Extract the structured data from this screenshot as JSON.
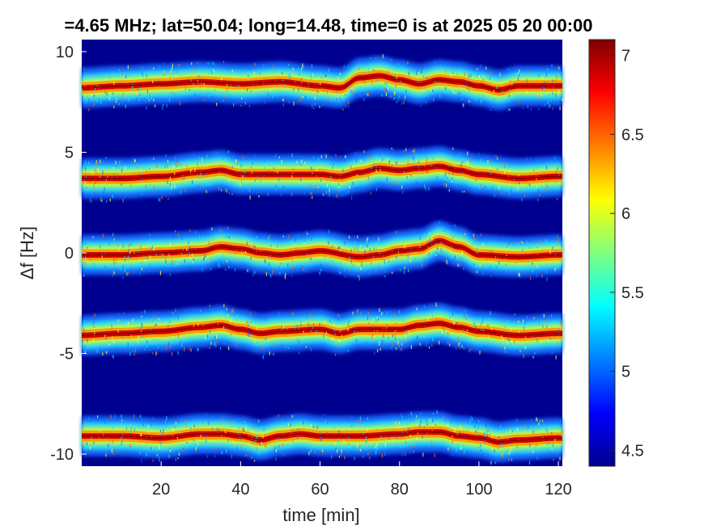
{
  "chart_data": {
    "type": "heatmap",
    "title": "=4.65 MHz;  lat=50.04; long=14.48, time=0 is at 2025 05 20 00:00",
    "xlabel": "time [min]",
    "ylabel": "Δf [Hz]",
    "xlim": [
      0,
      121
    ],
    "ylim": [
      -10.6,
      10.6
    ],
    "x_ticks": [
      20,
      40,
      60,
      80,
      100,
      120
    ],
    "x_tick_labels": [
      "20",
      "40",
      "60",
      "80",
      "100",
      "120"
    ],
    "y_ticks": [
      10,
      5,
      0,
      -5,
      -10
    ],
    "y_tick_labels": [
      "10",
      "5",
      "0",
      "-5",
      "-10"
    ],
    "colorbar": {
      "range": [
        4.4,
        7.1
      ],
      "ticks": [
        7,
        6.5,
        6,
        5.5,
        5,
        4.5
      ],
      "tick_labels": [
        "7",
        "6.5",
        "6",
        "5.5",
        "5",
        "4.5"
      ],
      "colormap": "jet"
    },
    "background_color": "#00008f",
    "bands": [
      {
        "offset": 8.3,
        "points": [
          [
            0,
            8.2
          ],
          [
            10,
            8.3
          ],
          [
            20,
            8.4
          ],
          [
            30,
            8.5
          ],
          [
            40,
            8.4
          ],
          [
            50,
            8.5
          ],
          [
            60,
            8.3
          ],
          [
            65,
            8.2
          ],
          [
            70,
            8.7
          ],
          [
            75,
            8.8
          ],
          [
            80,
            8.6
          ],
          [
            85,
            8.4
          ],
          [
            90,
            8.6
          ],
          [
            95,
            8.5
          ],
          [
            100,
            8.3
          ],
          [
            105,
            8.1
          ],
          [
            110,
            8.3
          ],
          [
            120,
            8.3
          ]
        ]
      },
      {
        "offset": 3.8,
        "points": [
          [
            0,
            3.7
          ],
          [
            10,
            3.7
          ],
          [
            20,
            3.8
          ],
          [
            30,
            4.0
          ],
          [
            35,
            4.1
          ],
          [
            40,
            3.9
          ],
          [
            50,
            3.9
          ],
          [
            60,
            3.9
          ],
          [
            65,
            3.8
          ],
          [
            70,
            4.0
          ],
          [
            75,
            4.2
          ],
          [
            80,
            4.1
          ],
          [
            85,
            4.2
          ],
          [
            90,
            4.3
          ],
          [
            95,
            4.1
          ],
          [
            100,
            3.9
          ],
          [
            110,
            3.7
          ],
          [
            120,
            3.8
          ]
        ]
      },
      {
        "offset": 0.0,
        "points": [
          [
            0,
            -0.1
          ],
          [
            10,
            -0.1
          ],
          [
            20,
            0.0
          ],
          [
            30,
            0.1
          ],
          [
            35,
            0.3
          ],
          [
            40,
            0.2
          ],
          [
            45,
            0.0
          ],
          [
            50,
            -0.1
          ],
          [
            55,
            0.0
          ],
          [
            60,
            0.1
          ],
          [
            70,
            -0.2
          ],
          [
            75,
            -0.1
          ],
          [
            80,
            0.1
          ],
          [
            85,
            0.2
          ],
          [
            90,
            0.6
          ],
          [
            95,
            0.3
          ],
          [
            100,
            -0.1
          ],
          [
            110,
            -0.2
          ],
          [
            120,
            -0.1
          ]
        ]
      },
      {
        "offset": -4.0,
        "points": [
          [
            0,
            -4.1
          ],
          [
            10,
            -4.0
          ],
          [
            20,
            -3.9
          ],
          [
            30,
            -3.7
          ],
          [
            35,
            -3.6
          ],
          [
            40,
            -3.8
          ],
          [
            45,
            -4.0
          ],
          [
            50,
            -3.9
          ],
          [
            60,
            -3.8
          ],
          [
            65,
            -4.0
          ],
          [
            70,
            -3.8
          ],
          [
            80,
            -3.8
          ],
          [
            85,
            -3.6
          ],
          [
            90,
            -3.5
          ],
          [
            95,
            -3.7
          ],
          [
            100,
            -3.9
          ],
          [
            110,
            -4.1
          ],
          [
            120,
            -4.0
          ]
        ]
      },
      {
        "offset": -9.1,
        "points": [
          [
            0,
            -9.1
          ],
          [
            10,
            -9.1
          ],
          [
            20,
            -9.2
          ],
          [
            30,
            -9.0
          ],
          [
            35,
            -9.0
          ],
          [
            40,
            -9.1
          ],
          [
            45,
            -9.3
          ],
          [
            50,
            -9.1
          ],
          [
            55,
            -9.0
          ],
          [
            60,
            -9.1
          ],
          [
            70,
            -9.1
          ],
          [
            80,
            -9.0
          ],
          [
            85,
            -8.9
          ],
          [
            90,
            -8.9
          ],
          [
            95,
            -9.1
          ],
          [
            100,
            -9.2
          ],
          [
            105,
            -9.4
          ],
          [
            110,
            -9.3
          ],
          [
            120,
            -9.2
          ]
        ]
      }
    ]
  }
}
